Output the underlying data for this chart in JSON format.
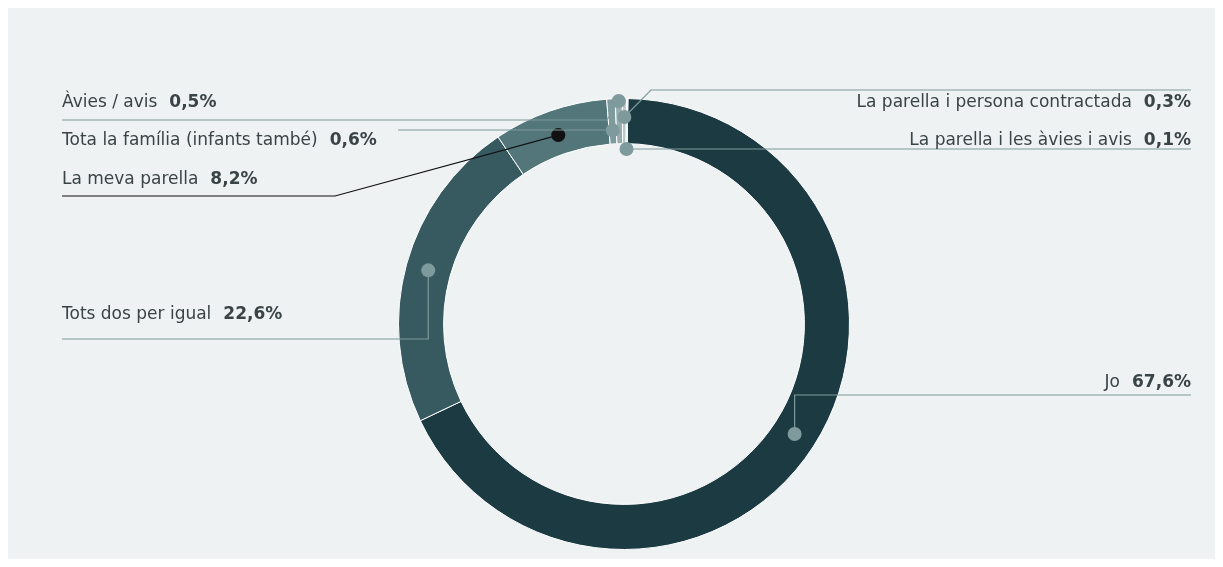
{
  "chart_data": {
    "type": "donut",
    "categories": [
      "Jo",
      "Tots dos per igual",
      "La meva parella",
      "Tota la família (infants també)",
      "Àvies / avis",
      "La parella i persona contractada",
      "La parella i les àvies i avis"
    ],
    "values": [
      67.6,
      22.6,
      8.2,
      0.6,
      0.5,
      0.3,
      0.1
    ],
    "value_labels": [
      "67,6%",
      "22,6%",
      "8,2%",
      "0,6%",
      "0,5%",
      "0,3%",
      "0,1%"
    ],
    "colors": [
      "#1c3a42",
      "#365a5f",
      "#52767a",
      "#7f9a9c",
      "#95acae",
      "#b7c6c7",
      "#e4eaea"
    ],
    "legend": false
  }
}
